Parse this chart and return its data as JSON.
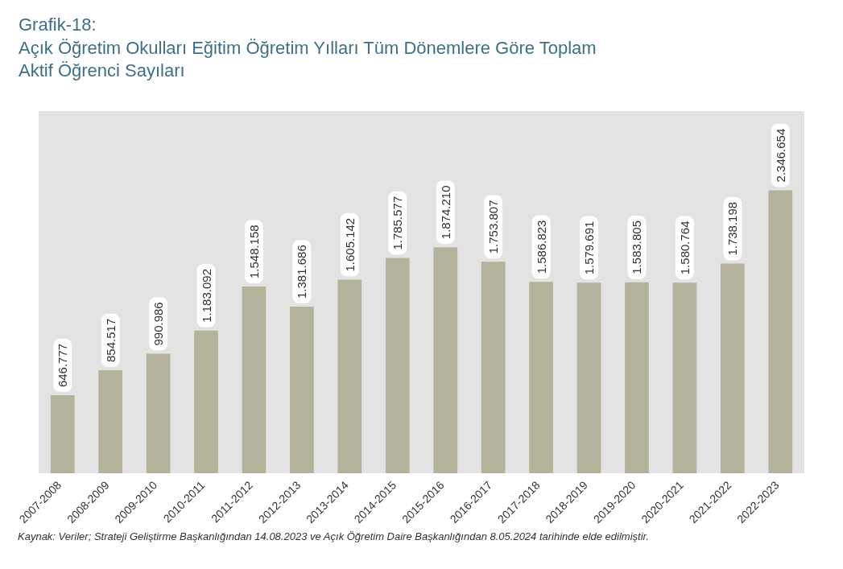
{
  "chart_data": {
    "type": "bar",
    "title": "Grafik-18:",
    "subtitle": "Açık Öğretim Okulları Eğitim Öğretim Yılları Tüm Dönemlere Göre Toplam\nAktif Öğrenci Sayıları",
    "categories": [
      "2007-2008",
      "2008-2009",
      "2009-2010",
      "2010-2011",
      "2011-2012",
      "2012-2013",
      "2013-2014",
      "2014-2015",
      "2015-2016",
      "2016-2017",
      "2017-2018",
      "2018-2019",
      "2019-2020",
      "2020-2021",
      "2021-2022",
      "2022-2023"
    ],
    "values": [
      646777,
      854517,
      990986,
      1183092,
      1548158,
      1381686,
      1605142,
      1785577,
      1874210,
      1753807,
      1586823,
      1579691,
      1583805,
      1580764,
      1738198,
      2346654
    ],
    "value_labels": [
      "646.777",
      "854.517",
      "990.986",
      "1.183.092",
      "1.548.158",
      "1.381.686",
      "1.605.142",
      "1.785.577",
      "1.874.210",
      "1.753.807",
      "1.586.823",
      "1.579.691",
      "1.583.805",
      "1.580.764",
      "1.738.198",
      "2.346.654"
    ],
    "color": "#b5b29c",
    "grid": false,
    "annotations": [
      "Kaynak: Veriler; Strateji Geliştirme Başkanlığından 14.08.2023 ve Açık Öğretim Daire Başkanlığından 8.05.2024 tarihinde elde edilmiştir."
    ]
  }
}
